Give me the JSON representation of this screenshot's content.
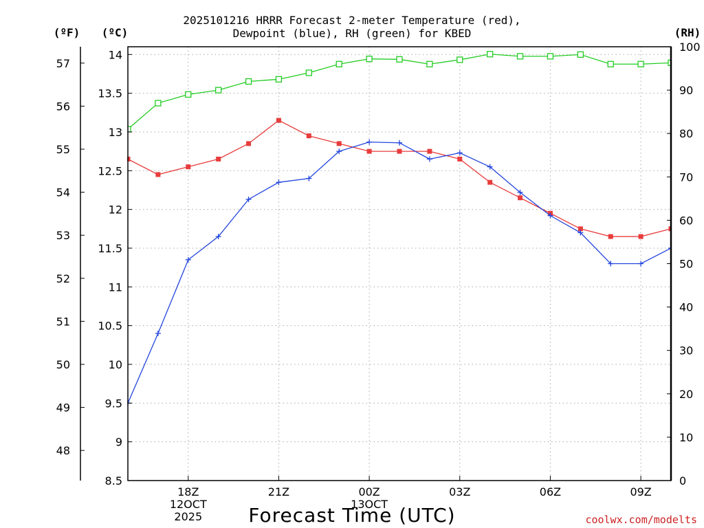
{
  "chart_data": {
    "type": "line",
    "title_line1": "2025101216 HRRR Forecast 2-meter Temperature (red),",
    "title_line2": "Dewpoint (blue), RH (green) for KBED",
    "units": {
      "f": "(ºF)",
      "c": "(ºC)",
      "rh": "(RH)"
    },
    "xlabel": "Forecast Time (UTC)",
    "watermark": "coolwx.com/modelts",
    "x_hours": [
      16,
      17,
      18,
      19,
      20,
      21,
      22,
      23,
      24,
      25,
      26,
      27,
      28,
      29,
      30,
      31,
      32,
      33,
      34
    ],
    "x_range": [
      16,
      34
    ],
    "x_ticks": [
      {
        "hour": 18,
        "lines": [
          "18Z",
          "12OCT",
          "2025"
        ]
      },
      {
        "hour": 21,
        "lines": [
          "21Z"
        ]
      },
      {
        "hour": 24,
        "lines": [
          "00Z",
          "13OCT"
        ]
      },
      {
        "hour": 27,
        "lines": [
          "03Z"
        ]
      },
      {
        "hour": 30,
        "lines": [
          "06Z"
        ]
      },
      {
        "hour": 33,
        "lines": [
          "09Z"
        ]
      }
    ],
    "celsius_axis": {
      "range": [
        8.5,
        14.1
      ],
      "ticks": [
        8.5,
        9,
        9.5,
        10,
        10.5,
        11,
        11.5,
        12,
        12.5,
        13,
        13.5,
        14
      ],
      "tick_labels": [
        "8.5",
        "9",
        "9.5",
        "10",
        "10.5",
        "11",
        "11.5",
        "12",
        "12.5",
        "13",
        "13.5",
        "14"
      ]
    },
    "fahrenheit_axis": {
      "ticks": [
        48,
        49,
        50,
        51,
        52,
        53,
        54,
        55,
        56,
        57
      ],
      "tick_labels": [
        "48",
        "49",
        "50",
        "51",
        "52",
        "53",
        "54",
        "55",
        "56",
        "57"
      ]
    },
    "rh_axis": {
      "range": [
        0,
        100
      ],
      "ticks": [
        0,
        10,
        20,
        30,
        40,
        50,
        60,
        70,
        80,
        90,
        100
      ],
      "tick_labels": [
        "0",
        "10",
        "20",
        "30",
        "40",
        "50",
        "60",
        "70",
        "80",
        "90",
        "100"
      ]
    },
    "series": [
      {
        "name": "Temperature",
        "axis": "c",
        "color": "#e83c3c",
        "marker": "filled-square",
        "values": [
          12.65,
          12.45,
          12.55,
          12.65,
          12.85,
          13.15,
          12.95,
          12.85,
          12.75,
          12.75,
          12.75,
          12.65,
          12.35,
          12.15,
          11.95,
          11.75,
          11.65,
          11.65,
          11.75
        ]
      },
      {
        "name": "Dewpoint",
        "axis": "c",
        "color": "#2244dd",
        "marker": "plus",
        "values": [
          9.5,
          10.4,
          11.35,
          11.65,
          12.13,
          12.35,
          12.4,
          12.75,
          12.87,
          12.86,
          12.65,
          12.73,
          12.55,
          12.22,
          11.92,
          11.7,
          11.3,
          11.3,
          11.5
        ]
      },
      {
        "name": "RH",
        "axis": "rh",
        "color": "#22cc22",
        "marker": "open-square",
        "values": [
          81,
          87,
          89,
          90,
          92,
          92.5,
          94,
          96,
          97.2,
          97.1,
          96,
          97,
          98.3,
          97.8,
          97.8,
          98.2,
          96,
          96,
          96.3
        ]
      }
    ]
  }
}
